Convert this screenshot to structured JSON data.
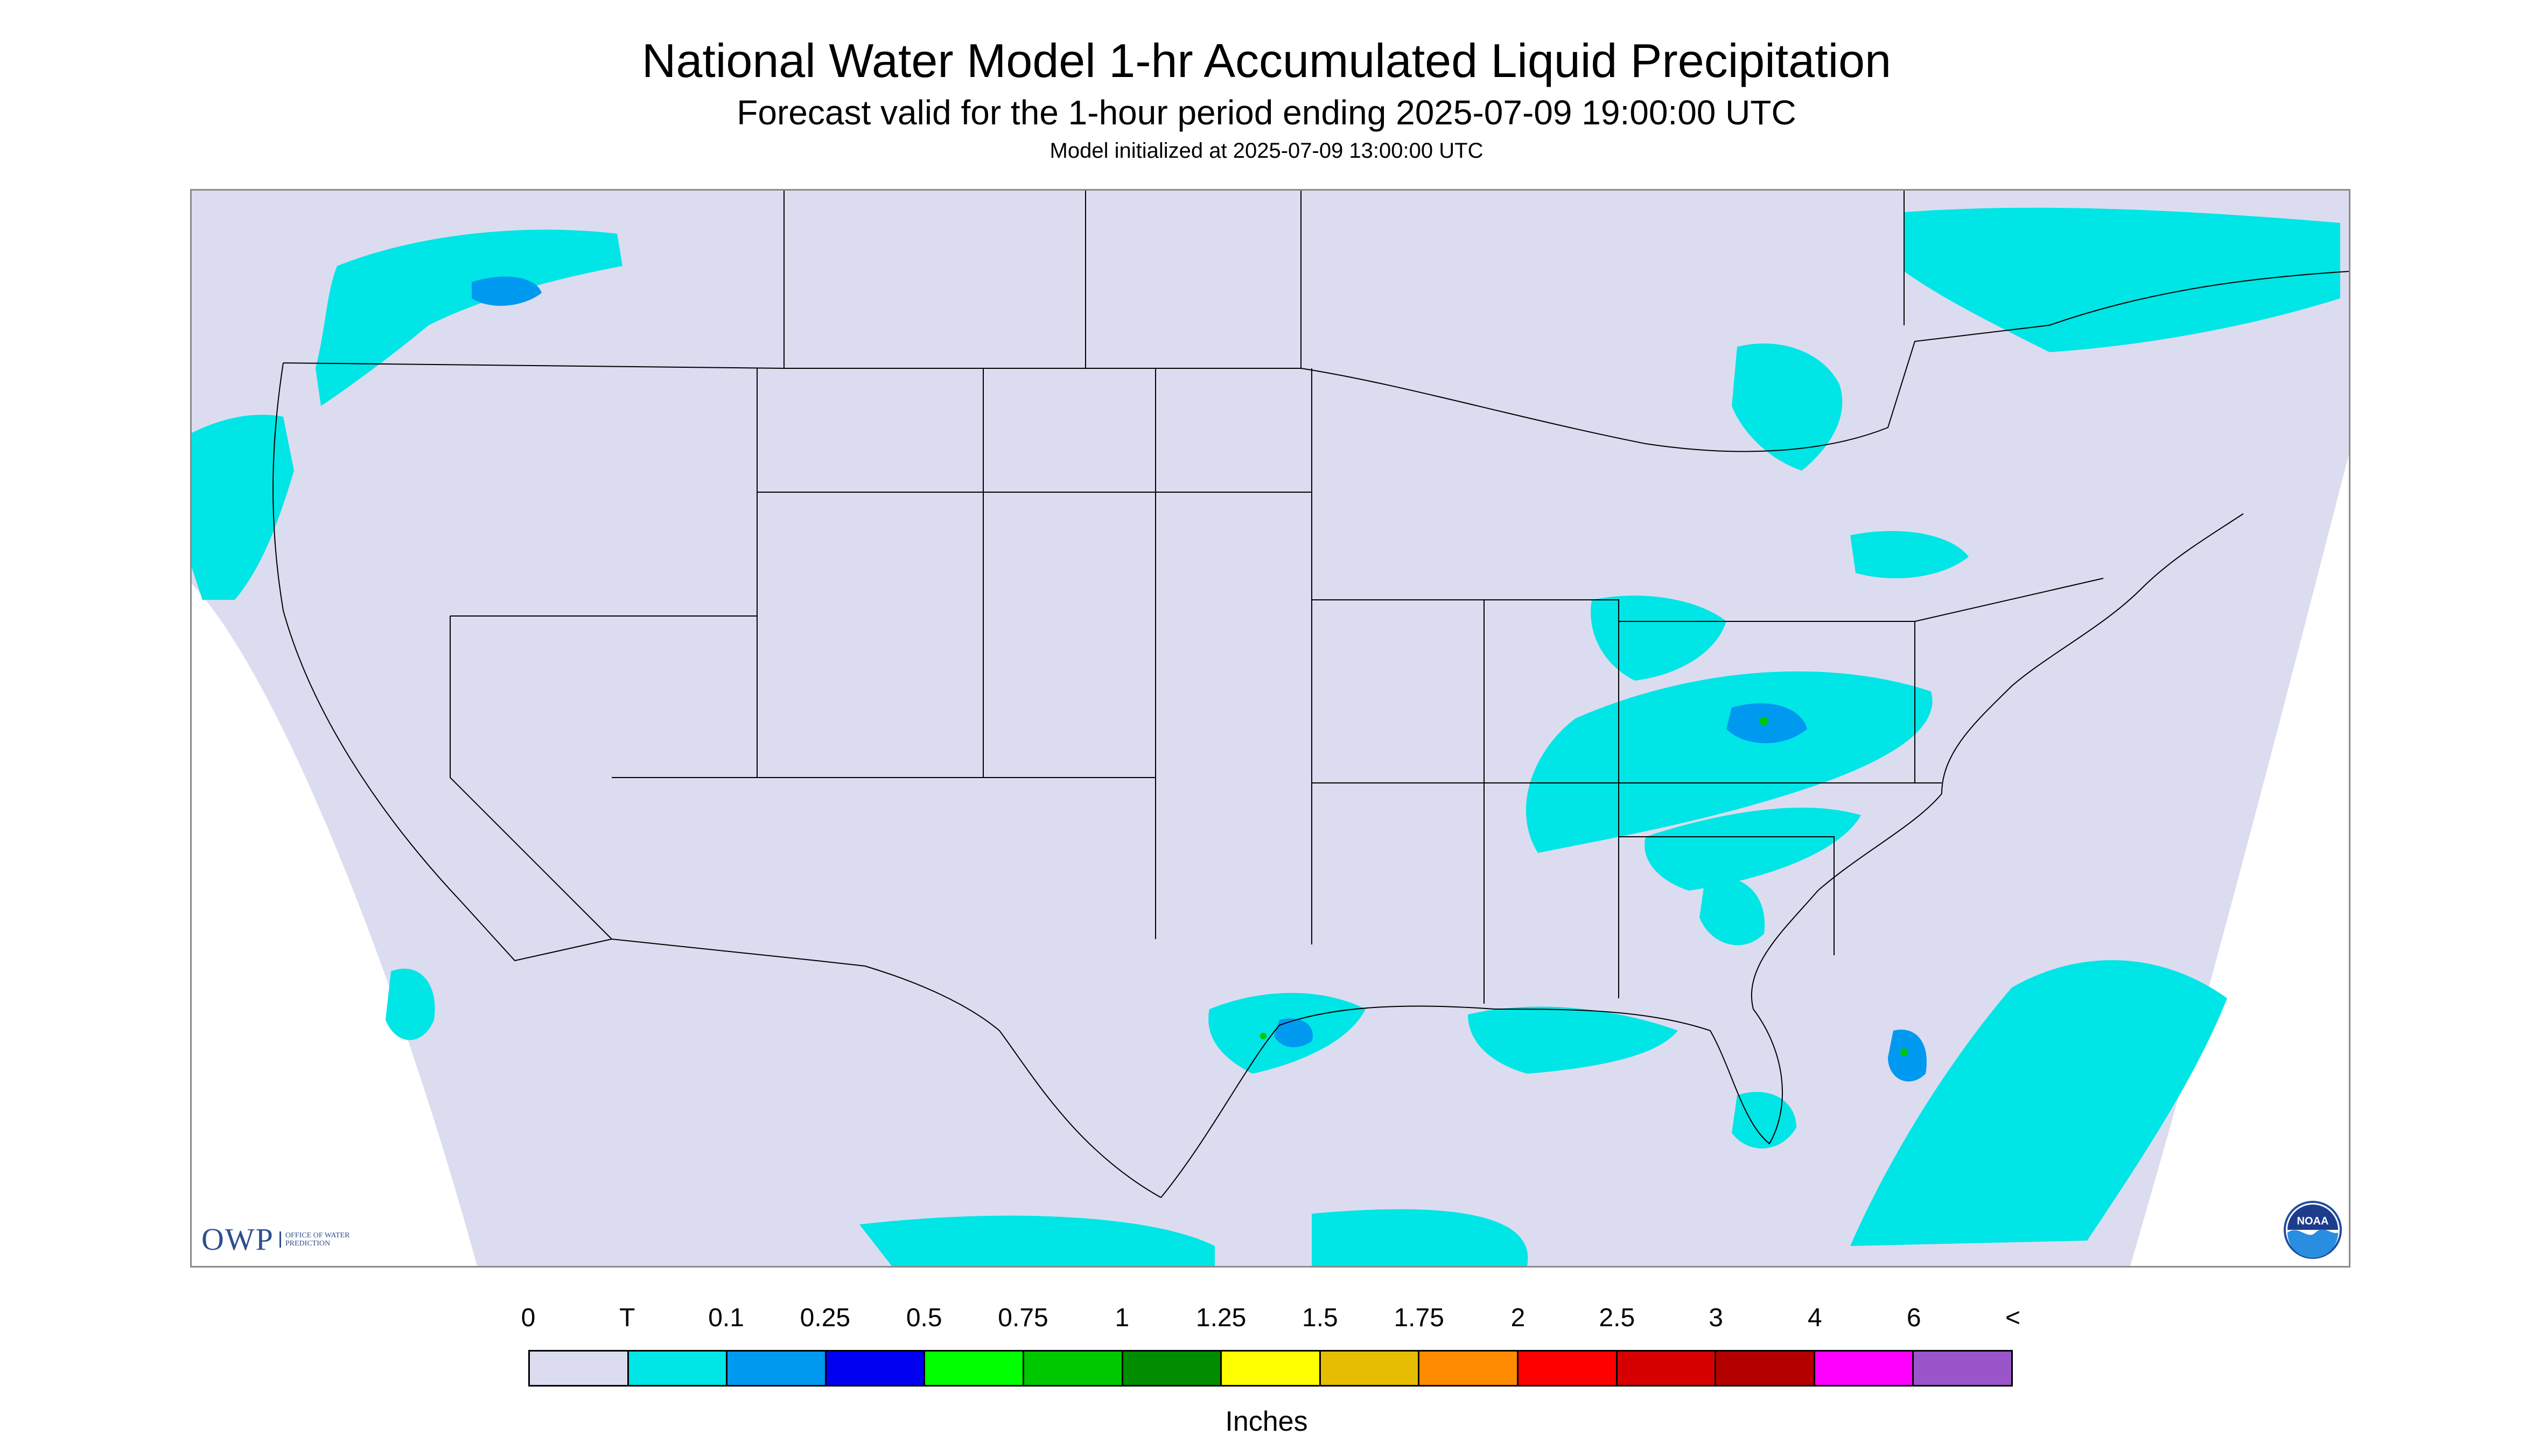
{
  "header": {
    "title": "National Water Model 1-hr Accumulated Liquid Precipitation",
    "subtitle": "Forecast valid for the 1-hour period ending 2025-07-09 19:00:00 UTC",
    "init_line": "Model initialized at 2025-07-09 13:00:00 UTC"
  },
  "map": {
    "background_color": "#dcdcf0",
    "outside_domain_color": "#ffffff",
    "boundary_color": "#000000"
  },
  "logos": {
    "owp": {
      "letters": "OWP",
      "subtitle": "OFFICE OF WATER PREDICTION"
    },
    "noaa": {
      "text": "NOAA"
    }
  },
  "legend": {
    "labels": [
      "0",
      "T",
      "0.1",
      "0.25",
      "0.5",
      "0.75",
      "1",
      "1.25",
      "1.5",
      "1.75",
      "2",
      "2.5",
      "3",
      "4",
      "6",
      "<"
    ],
    "colors": [
      "#dcdcf0",
      "#00e5e5",
      "#0099f0",
      "#0000f0",
      "#00ff00",
      "#00c800",
      "#008c00",
      "#ffff00",
      "#e6bd00",
      "#ff8c00",
      "#ff0000",
      "#d70000",
      "#b50000",
      "#ff00ff",
      "#9955c9"
    ],
    "units": "Inches"
  }
}
